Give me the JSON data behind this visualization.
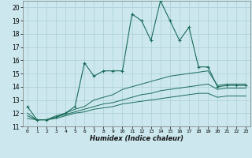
{
  "title": "",
  "xlabel": "Humidex (Indice chaleur)",
  "background_color": "#cce8ee",
  "grid_color": "#aacdd6",
  "line_color": "#1a6b5a",
  "x_values": [
    0,
    1,
    2,
    3,
    4,
    5,
    6,
    7,
    8,
    9,
    10,
    11,
    12,
    13,
    14,
    15,
    16,
    17,
    18,
    19,
    20,
    21,
    22,
    23
  ],
  "series1": [
    12.5,
    11.5,
    11.5,
    11.7,
    12.0,
    12.5,
    15.8,
    14.8,
    15.2,
    15.2,
    15.2,
    19.5,
    19.0,
    17.5,
    20.5,
    19.0,
    17.5,
    18.5,
    15.5,
    15.5,
    14.0,
    14.1,
    14.1,
    14.1
  ],
  "series2": [
    12.0,
    11.5,
    11.5,
    11.8,
    12.0,
    12.3,
    12.5,
    13.0,
    13.2,
    13.4,
    13.8,
    14.0,
    14.2,
    14.4,
    14.6,
    14.8,
    14.9,
    15.0,
    15.1,
    15.2,
    14.1,
    14.2,
    14.2,
    14.2
  ],
  "series3": [
    11.8,
    11.5,
    11.5,
    11.7,
    11.9,
    12.1,
    12.3,
    12.5,
    12.7,
    12.8,
    13.0,
    13.2,
    13.4,
    13.5,
    13.7,
    13.8,
    13.9,
    14.0,
    14.1,
    14.2,
    13.8,
    13.9,
    13.9,
    13.9
  ],
  "series4": [
    11.6,
    11.5,
    11.5,
    11.6,
    11.8,
    12.0,
    12.1,
    12.3,
    12.4,
    12.5,
    12.7,
    12.8,
    12.9,
    13.0,
    13.1,
    13.2,
    13.3,
    13.4,
    13.5,
    13.5,
    13.2,
    13.3,
    13.3,
    13.3
  ],
  "ylim": [
    11,
    20.5
  ],
  "xlim": [
    -0.5,
    23.5
  ],
  "yticks": [
    11,
    12,
    13,
    14,
    15,
    16,
    17,
    18,
    19,
    20
  ],
  "xticks": [
    0,
    1,
    2,
    3,
    4,
    5,
    6,
    7,
    8,
    9,
    10,
    11,
    12,
    13,
    14,
    15,
    16,
    17,
    18,
    19,
    20,
    21,
    22,
    23
  ]
}
